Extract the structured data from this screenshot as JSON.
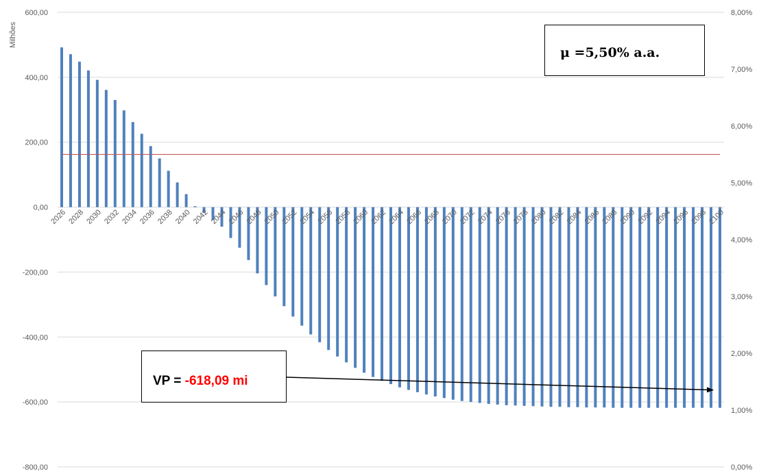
{
  "chart_data": {
    "type": "bar",
    "ylabel": "Milhões",
    "ylim": [
      -800,
      600
    ],
    "yticks": [
      "600,00",
      "400,00",
      "200,00",
      "0,00",
      "-200,00",
      "-400,00",
      "-600,00",
      "-800,00"
    ],
    "y2lim": [
      0,
      8
    ],
    "y2ticks": [
      "8,00%",
      "7,00%",
      "6,00%",
      "5,00%",
      "4,00%",
      "3,00%",
      "2,00%",
      "1,00%",
      "0,00%"
    ],
    "x_start": 2026,
    "x_end": 2100,
    "xtick_labels": [
      "2026",
      "2028",
      "2030",
      "2032",
      "2034",
      "2036",
      "2038",
      "2040",
      "2042",
      "2044",
      "2046",
      "2048",
      "2050",
      "2052",
      "2054",
      "2056",
      "2058",
      "2060",
      "2062",
      "2064",
      "2066",
      "2068",
      "2070",
      "2072",
      "2074",
      "2076",
      "2078",
      "2080",
      "2082",
      "2084",
      "2086",
      "2088",
      "2090",
      "2092",
      "2094",
      "2096",
      "2098",
      "2100"
    ],
    "series": [
      {
        "values": [
          492,
          471,
          448,
          421,
          392,
          361,
          330,
          298,
          262,
          226,
          188,
          150,
          112,
          76,
          40,
          3,
          -18,
          -40,
          -60,
          -95,
          -125,
          -163,
          -204,
          -240,
          -275,
          -305,
          -337,
          -365,
          -392,
          -416,
          -440,
          -460,
          -478,
          -495,
          -510,
          -523,
          -535,
          -545,
          -555,
          -563,
          -570,
          -577,
          -583,
          -588,
          -593,
          -597,
          -600,
          -603,
          -606,
          -608,
          -610,
          -611,
          -612,
          -613,
          -614,
          -615,
          -615,
          -616,
          -616,
          -617,
          -617,
          -617,
          -618,
          -618,
          -618,
          -618,
          -618,
          -618,
          -618,
          -618,
          -618,
          -618,
          -618,
          -618,
          -618
        ],
        "color": "#4f81bd"
      }
    ],
    "reference_line": {
      "value_percent": 5.5,
      "color": "#c0504d"
    },
    "grid": true
  },
  "annotations": {
    "mu_label": "μ =5,50% a.a.",
    "vp_label": "VP = ",
    "vp_value": "-618,09 mi",
    "vp_value_color": "#ff0000"
  }
}
